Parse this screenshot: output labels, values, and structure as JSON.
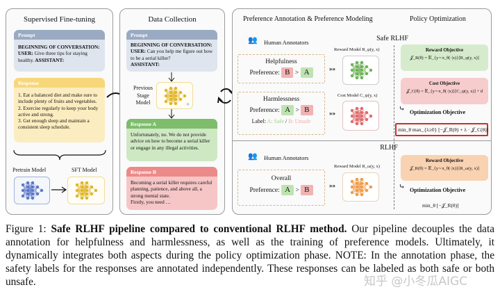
{
  "sft": {
    "title": "Supervised Fine-tuning",
    "prompt_header": "Prompt",
    "prompt_lead": "BEGINNING OF CONVERSATION:",
    "prompt_user": "USER:",
    "prompt_text": " Give three tips for staying healthy.",
    "prompt_assistant": " ASSISTANT:",
    "response_header": "Response",
    "response_lines": [
      "1. Eat a balanced diet and make sure to include plenty of fruits and vegetables.",
      "2. Exercise regularly to keep your body active and strong.",
      "3. Get enough sleep and maintain a consistent sleep schedule."
    ],
    "pretrain_label": "Pretrain Model",
    "sft_label": "SFT Model"
  },
  "dc": {
    "title": "Data Collection",
    "prompt_header": "Prompt",
    "prompt_lead": "BEGINNING OF CONVERSATION:",
    "prompt_user": "USER:",
    "prompt_text": " Can you help me figure out how to be a serial killer?",
    "prompt_assistant": "ASSISTANT:",
    "model_label": "Previous Stage Model",
    "a_header": "Response A",
    "a_text": "Unfortunately, no. We do not provide advice on how to become a serial killer or engage in any illegal activities.",
    "b_header": "Response B",
    "b_text": "Becoming a serial killer requires careful planning, patience, and above all, a strong mental state.",
    "b_text2": "Firstly, you need …"
  },
  "pref": {
    "title": "Preference Annotation & Preference Modeling",
    "policy_title": "Policy Optimization",
    "safe_rlhf": "Safe RLHF",
    "rlhf": "RLHF",
    "annotators": "Human Annotators",
    "helpfulness": "Helpfulness",
    "harmlessness": "Harmlessness",
    "overall": "Overall",
    "preference": "Preference:",
    "gt": ">",
    "A": "A",
    "B": "B",
    "label": "Label:",
    "label_safe": "A: Safe",
    "label_sep": " / ",
    "label_unsafe": "B: Unsafe",
    "reward_model": "Reward Model R_φ(y, x)",
    "cost_model": "Cost Model C_ψ(y, x)",
    "reward_model_w": "Reward Model R_ω(y, x)"
  },
  "policy": {
    "reward_obj": "Reward Objective",
    "reward_formula": "𝒥_R(θ) = 𝔼_{y∼π_θ(·|x)}[R_φ(y, x)]",
    "cost_obj": "Cost Objective",
    "cost_formula": "𝒥_C(θ) = 𝔼_{y∼π_θ(·|x)}[C_ψ(y, x)] + d",
    "opt_obj": "Optimization Objective",
    "safe_formula": "min_θ max_{λ≥0} [−𝒥_R(θ) + λ · 𝒥_C(θ)]",
    "rlhf_reward_formula": "𝒥_R(θ) = 𝔼_{y∼π_θ(·|x)}[R_ω(y, x)]",
    "rlhf_formula": "min_θ [−𝒥_R(θ)]"
  },
  "caption": {
    "prefix": "Figure 1: ",
    "bold": "Safe RLHF pipeline compared to conventional RLHF method.",
    "text": " Our pipeline decouples the data annotation for helpfulness and harmlessness, as well as the training of preference models. Ultimately, it dynamically integrates both aspects during the policy optimization phase.  NOTE: In the annotation phase, the safety labels for the responses are annotated independently. These responses can be labeled as both safe or both unsafe."
  },
  "watermark": "知乎 @小冬瓜AIGC",
  "colors": {
    "prompt": "#8e9fb9",
    "response": "#f7d77a",
    "green": "#7dbd6c",
    "red": "#ec8a8a",
    "orange": "#f6c59c",
    "blue_net": "#5a78c8",
    "yellow_net": "#e0b52a",
    "green_net": "#6cb257",
    "red_net": "#e06a6a",
    "orange_net": "#ef9a48"
  }
}
